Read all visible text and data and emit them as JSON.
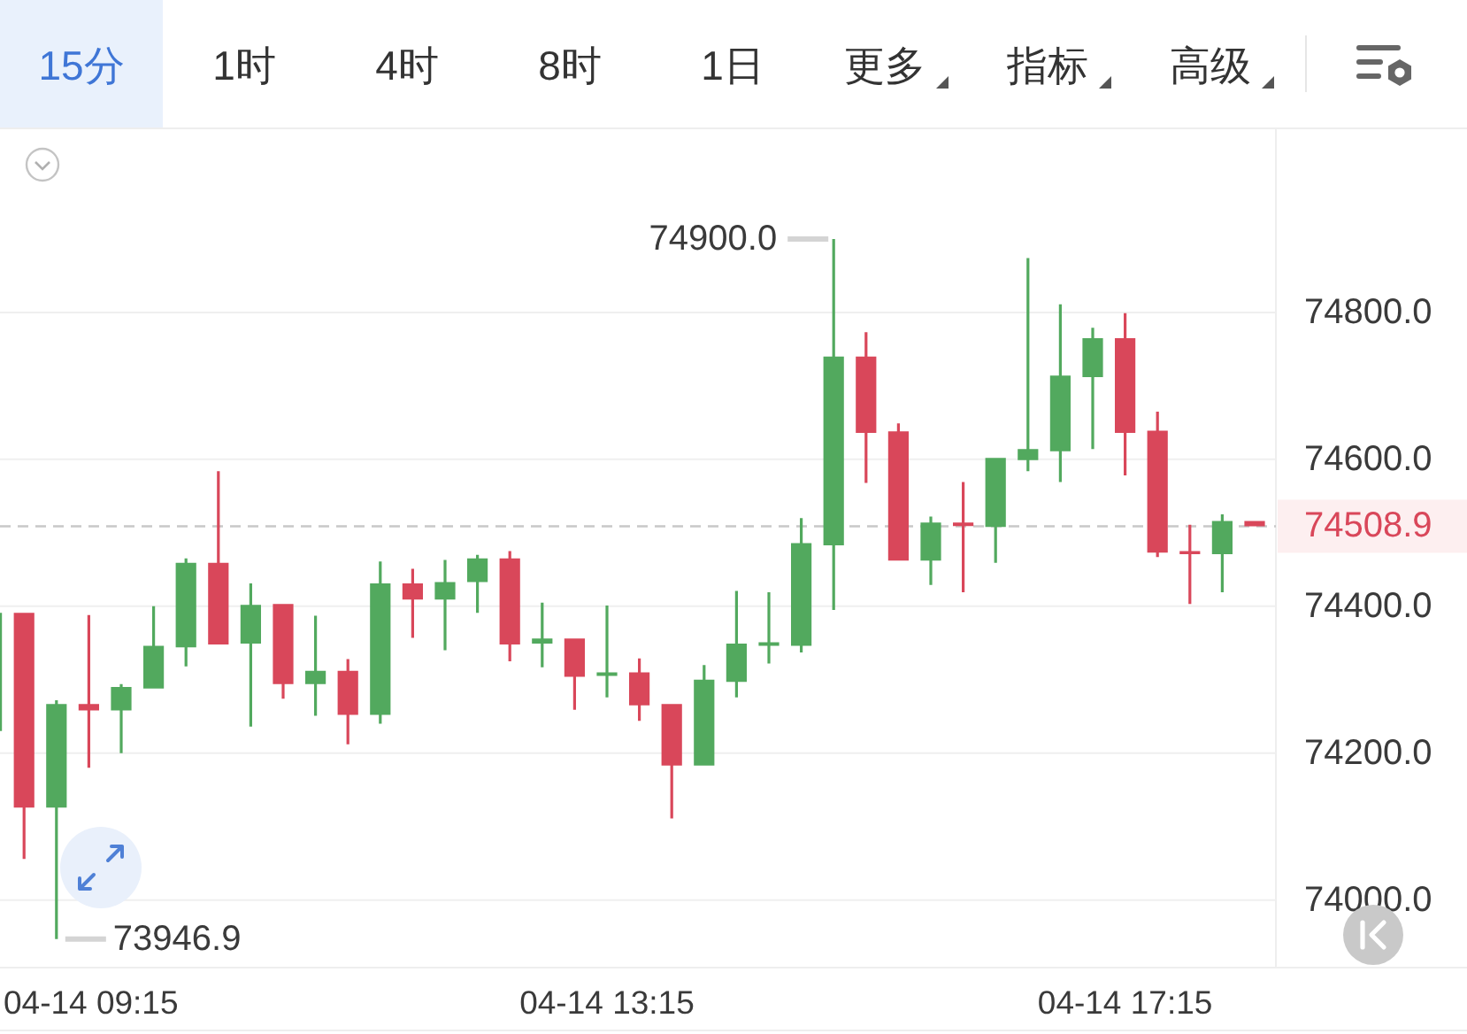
{
  "chart_data": {
    "type": "candlestick",
    "annotations": [
      "15分",
      "1时",
      "4时",
      "8时",
      "1日",
      "更多",
      "指标",
      "高级",
      "74900.0",
      "73946.9"
    ],
    "categories": [
      null,
      null,
      null,
      "04-14 09:15",
      null,
      null,
      null,
      null,
      null,
      null,
      null,
      null,
      null,
      null,
      null,
      null,
      null,
      null,
      null,
      "04-14 13:15",
      null,
      null,
      null,
      null,
      null,
      null,
      null,
      null,
      null,
      null,
      null,
      null,
      null,
      null,
      null,
      "04-14 17:15",
      null,
      null,
      null,
      null
    ],
    "ohlc": [
      [
        74230,
        74391,
        74230,
        74391
      ],
      [
        74391,
        74391,
        74056,
        74126
      ],
      [
        74126,
        74272,
        73946.9,
        74267
      ],
      [
        74267,
        74388,
        74180,
        74258
      ],
      [
        74258,
        74294,
        74200,
        74290
      ],
      [
        74288,
        74400,
        74288,
        74346
      ],
      [
        74344,
        74465,
        74318,
        74459
      ],
      [
        74459,
        74584,
        74348,
        74348
      ],
      [
        74349,
        74431,
        74236,
        74402
      ],
      [
        74403,
        74403,
        74274,
        74294
      ],
      [
        74294,
        74387,
        74251,
        74312
      ],
      [
        74312,
        74328,
        74212,
        74252
      ],
      [
        74252,
        74461,
        74240,
        74431
      ],
      [
        74431,
        74451,
        74357,
        74409
      ],
      [
        74409,
        74463,
        74340,
        74433
      ],
      [
        74433,
        74470,
        74391,
        74465
      ],
      [
        74465,
        74475,
        74325,
        74348
      ],
      [
        74349,
        74405,
        74317,
        74356
      ],
      [
        74356,
        74356,
        74259,
        74304
      ],
      [
        74305,
        74401,
        74276,
        74310
      ],
      [
        74310,
        74329,
        74244,
        74265
      ],
      [
        74267,
        74267,
        74111,
        74183
      ],
      [
        74183,
        74320,
        74183,
        74300
      ],
      [
        74297,
        74421,
        74276,
        74349
      ],
      [
        74346,
        74419,
        74322,
        74351
      ],
      [
        74346,
        74520,
        74337,
        74486
      ],
      [
        74483,
        74900,
        74395,
        74740
      ],
      [
        74740,
        74773,
        74568,
        74636
      ],
      [
        74638,
        74649,
        74462,
        74462
      ],
      [
        74462,
        74522,
        74429,
        74514
      ],
      [
        74514,
        74569,
        74419,
        74509
      ],
      [
        74508,
        74602,
        74459,
        74602
      ],
      [
        74599,
        74874,
        74584,
        74614
      ],
      [
        74611,
        74811,
        74569,
        74714
      ],
      [
        74712,
        74779,
        74614,
        74765
      ],
      [
        74765,
        74799,
        74578,
        74636
      ],
      [
        74639,
        74665,
        74467,
        74473
      ],
      [
        74475,
        74511,
        74403,
        74471
      ],
      [
        74471,
        74525,
        74419,
        74516
      ],
      [
        74516,
        74516,
        74508.9,
        74508.9
      ]
    ],
    "colors": [
      "#52a95e",
      "#d9475a",
      "#52a95e",
      "#d9475a",
      "#52a95e",
      "#52a95e",
      "#52a95e",
      "#d9475a",
      "#52a95e",
      "#d9475a",
      "#52a95e",
      "#d9475a",
      "#52a95e",
      "#d9475a",
      "#52a95e",
      "#52a95e",
      "#d9475a",
      "#52a95e",
      "#d9475a",
      "#52a95e",
      "#d9475a",
      "#d9475a",
      "#52a95e",
      "#52a95e",
      "#52a95e",
      "#52a95e",
      "#52a95e",
      "#d9475a",
      "#d9475a",
      "#52a95e",
      "#d9475a",
      "#52a95e",
      "#52a95e",
      "#52a95e",
      "#52a95e",
      "#d9475a",
      "#d9475a",
      "#d9475a",
      "#52a95e",
      "#d9475a"
    ],
    "ylim": [
      73908,
      75047
    ],
    "yticks": [
      {
        "value": 74000,
        "label": "74000.0"
      },
      {
        "value": 74200,
        "label": "74200.0"
      },
      {
        "value": 74400,
        "label": "74400.0"
      },
      {
        "value": 74600,
        "label": "74600.0"
      },
      {
        "value": 74800,
        "label": "74800.0"
      }
    ],
    "grid": "y",
    "ref_lines": [
      {
        "axis": "y",
        "value": 74508.9,
        "label": "74508.9",
        "color": "#c8c8c8",
        "line_style": "dashed"
      }
    ]
  }
}
